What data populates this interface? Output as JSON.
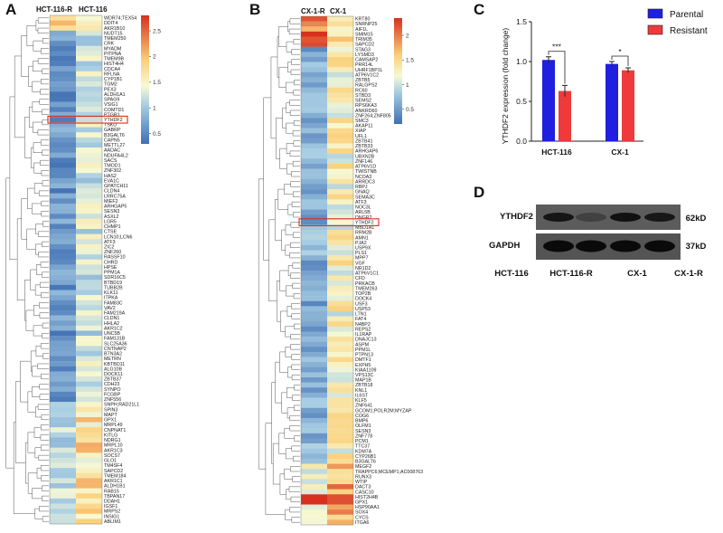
{
  "panels": {
    "A": {
      "label": "A",
      "col1": "HCT-116-R",
      "col2": "HCT-116",
      "scale_ticks": [
        "2.5",
        "2",
        "1.5",
        "1",
        "0.5"
      ],
      "scale_values": [
        2.5,
        2,
        1.5,
        1,
        0.5
      ],
      "scale_range": [
        0.3,
        2.8
      ],
      "highlight_gene": "YTHDF2",
      "genes": [
        "WDR74;TEX54",
        "DDIT4",
        "AKR1B10",
        "NUDT15",
        "TMEM250",
        "CRK",
        "MYADM",
        "PITPNA",
        "TMEM9B",
        "HIST4H4",
        "CDCA4",
        "RFLNA",
        "CYP1B1",
        "TGM2",
        "PEX3",
        "ALDH1A1",
        "SPAG9",
        "VSIG1",
        "COMTD1",
        "PTGR1",
        "YTHDF2",
        "TSKU",
        "GABRP",
        "B3GALT6",
        "CAPN5",
        "METTL27",
        "AADAC",
        "NDUFA4L2",
        "SACS",
        "TMOD1",
        "ZNF302",
        "HAS2",
        "EVA1C",
        "GPATCH11",
        "CLDN4",
        "LRRC75A",
        "MIEF2",
        "ARHGAP5",
        "SESN3",
        "ASXL2",
        "LGR5",
        "CHMP1",
        "CTSE",
        "LCN10;LCN6",
        "ATF3",
        "ZIC2",
        "ZNF260",
        "RASSF10",
        "CHRD",
        "HPSE",
        "PPM1A",
        "SDR16C5",
        "BTBD19",
        "TUBB2B",
        "KLK11",
        "ITPKA",
        "FAM83C",
        "VAV2",
        "FAM219A",
        "CLDN1",
        "HHLA2",
        "AKR1C2",
        "UNC5B",
        "FAM131B",
        "SLC25A36",
        "CNTNAP2",
        "BTN3A2",
        "METRN",
        "KBTBD11",
        "ALG10B",
        "DOCK11",
        "ZBTB37",
        "CDH23",
        "SYNPO",
        "FCGBP",
        "ZNF556",
        "SNPH;RAD21L1",
        "SPIN3",
        "MAPT",
        "GPX1",
        "MRPL49",
        "CNPNAT1",
        "KITLG",
        "NDRG1",
        "MRPL10",
        "AKR1C3",
        "SOCS7",
        "GLO1",
        "TM4SF4",
        "SAPCD2",
        "TMEM184",
        "AKR1C1",
        "ALDH1B1",
        "RAB15",
        "TBPAN17",
        "DDAH1",
        "IGSF1",
        "MRPS2",
        "INSIG1",
        "ABLIM1"
      ]
    },
    "B": {
      "label": "B",
      "col1": "CX-1-R",
      "col2": "CX-1",
      "scale_ticks": [
        "2",
        "1.5",
        "1",
        "0.5"
      ],
      "scale_values": [
        2,
        1.5,
        1,
        0.5
      ],
      "scale_range": [
        0.2,
        2.35
      ],
      "highlight_gene": "YTHDF2",
      "genes": [
        "KRT80",
        "SNRNP25",
        "AIF1L",
        "SMIM15",
        "TRIM35",
        "SAPCD2",
        "STAG3",
        "LYSMD3",
        "CAMSAP2",
        "PRR14L",
        "UHRF1BP1L",
        "ATP6V1C2",
        "ZBTB5",
        "RALGPS2",
        "RC60",
        "STBD3",
        "SEMS2",
        "RPS6KA3",
        "ANKRD60",
        "ZNF264;ZNF805",
        "SMC3",
        "AKAP11",
        "XIAP",
        "UFL1",
        "ZBTB41",
        "ZBTB33",
        "ARHGAP6",
        "UBXN2B",
        "ZNF146",
        "ATP6V1D",
        "TWISTNB",
        "NCOA3",
        "ARRDC3",
        "RBPJ",
        "GNAQ",
        "SEMA3C",
        "ATF3",
        "NOC3L",
        "ARL5B",
        "DNGR2",
        "YTHDF2",
        "MBD1A1",
        "RRM2B",
        "AMN1",
        "PJA2",
        "USP9X",
        "PLS1",
        "MPP7",
        "VGF",
        "NR1D2",
        "ATP6V1C1",
        "CFD",
        "PRKACB",
        "TMEM263",
        "TOP2B",
        "DOCK4",
        "USF3",
        "USP53",
        "LTN1",
        "FAT4",
        "N4BP2",
        "REPS2",
        "IL1RAP",
        "DNAJC13",
        "ASPM",
        "PPM1L",
        "PTPN13",
        "DMTF1",
        "EXPH5",
        "KIAA1109",
        "VPS13C",
        "MAP1B",
        "ZBTB18",
        "KNL1",
        "IL6ST",
        "KLF5",
        "ZNF641",
        "GCOM1;POLR2M;MYZAP",
        "COG6",
        "BMP6",
        "OLFM1",
        "SESN3",
        "ZNF778",
        "PCM1",
        "TTC37",
        "KDM7A",
        "CYP26B1",
        "B3GALT6",
        "MEGF2",
        "TRAPPC6;MCEMP1;AC008763",
        "RUNX3",
        "WTIP",
        "DACT3",
        "CASC10",
        "HIST2H4B",
        "GPX1",
        "HSP90AA1",
        "SOX4",
        "CYCS",
        "ITGA6"
      ]
    },
    "C": {
      "label": "C",
      "ylabel": "YTHDF2 expression (fold change)",
      "legend": [
        "Parental",
        "Resistant"
      ]
    },
    "D": {
      "label": "D",
      "rows": [
        "YTHDF2",
        "GAPDH"
      ],
      "sizes": [
        "62kD",
        "37kD"
      ],
      "lanes": [
        "HCT-116",
        "HCT-116-R",
        "CX-1",
        "CX-1-R"
      ],
      "band_intensity": {
        "YTHDF2": [
          0.85,
          0.2,
          0.9,
          0.8
        ],
        "GAPDH": [
          1.0,
          1.0,
          1.0,
          1.0
        ]
      }
    }
  },
  "chart_data": {
    "type": "bar",
    "title": "",
    "xlabel": "",
    "ylabel": "YTHDF2 expression (fold change)",
    "categories": [
      "HCT-116",
      "CX-1"
    ],
    "series": [
      {
        "name": "Parental",
        "color": "#1f1fe0",
        "values": [
          1.02,
          0.97
        ],
        "errors": [
          0.04,
          0.03
        ]
      },
      {
        "name": "Resistant",
        "color": "#ee3a3a",
        "values": [
          0.63,
          0.89
        ],
        "errors": [
          0.07,
          0.03
        ]
      }
    ],
    "ylim": [
      0,
      1.5
    ],
    "yticks": [
      "0.0",
      "0.5",
      "1.0",
      "1.5"
    ],
    "ytick_values": [
      0,
      0.5,
      1.0,
      1.5
    ],
    "significance": [
      "***",
      "*"
    ]
  }
}
